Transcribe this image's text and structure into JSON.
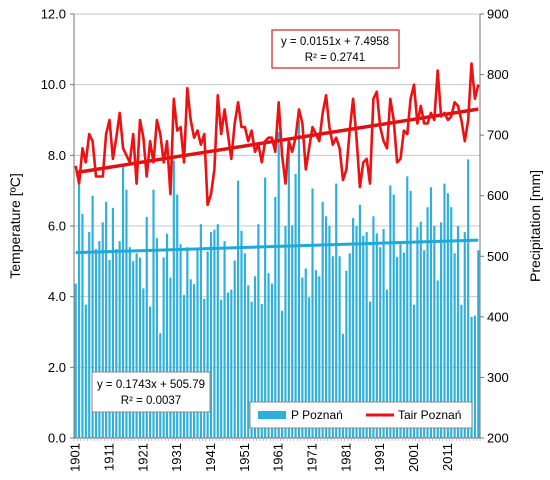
{
  "chart_data": {
    "type": "bar+line",
    "x_start": 1901,
    "x_end": 2020,
    "x_tick_labels": [
      "1901",
      "1911",
      "1921",
      "1931",
      "1941",
      "1951",
      "1961",
      "1971",
      "1981",
      "1991",
      "2001",
      "2011"
    ],
    "y_left": {
      "label": "Temperature [ºC]",
      "lim": [
        0.0,
        12.0
      ],
      "tick_labels": [
        "0.0",
        "2.0",
        "4.0",
        "6.0",
        "8.0",
        "10.0",
        "12.0"
      ]
    },
    "y_right": {
      "label": "Precipitation [mm]",
      "lim": [
        200,
        900
      ],
      "tick_labels": [
        "200",
        "300",
        "400",
        "500",
        "600",
        "700",
        "800",
        "900"
      ]
    },
    "series": [
      {
        "name": "P Poznań",
        "type": "bar",
        "axis": "right",
        "color": "#2fb0dc",
        "values": [
          455,
          618,
          570,
          420,
          540,
          600,
          512,
          525,
          556,
          590,
          494,
          580,
          512,
          525,
          650,
          610,
          515,
          492,
          505,
          498,
          447,
          565,
          417,
          610,
          530,
          373,
          498,
          537,
          465,
          658,
          602,
          520,
          436,
          515,
          462,
          454,
          512,
          553,
          430,
          508,
          540,
          544,
          553,
          428,
          525,
          440,
          445,
          493,
          625,
          542,
          505,
          452,
          425,
          467,
          553,
          421,
          630,
          472,
          455,
          598,
          705,
          410,
          550,
          688,
          551,
          636,
          724,
          465,
          480,
          432,
          612,
          477,
          467,
          590,
          566,
          550,
          500,
          620,
          500,
          372,
          476,
          505,
          563,
          550,
          585,
          534,
          540,
          425,
          566,
          538,
          515,
          545,
          445,
          617,
          602,
          499,
          520,
          506,
          632,
          608,
          420,
          548,
          557,
          510,
          581,
          614,
          550,
          460,
          556,
          620,
          604,
          581,
          505,
          550,
          420,
          540,
          660,
          400,
          402,
          510
        ],
        "trend": {
          "slope": 0.1743,
          "intercept": 505.79,
          "equation": "y = 0.1743x + 505.79",
          "r2": "R² = 0.0037"
        }
      },
      {
        "name": "Tair Poznań",
        "type": "line",
        "axis": "left",
        "color": "#ee1111",
        "values": [
          7.7,
          7.2,
          8.2,
          7.8,
          8.6,
          8.4,
          7.4,
          7.4,
          7.4,
          8.6,
          9.0,
          7.9,
          8.5,
          9.2,
          8.2,
          8.0,
          7.8,
          8.6,
          7.2,
          9.0,
          8.5,
          7.4,
          8.4,
          7.8,
          9.0,
          8.6,
          7.8,
          8.4,
          6.9,
          9.6,
          8.7,
          8.8,
          7.8,
          9.9,
          9.0,
          8.5,
          8.7,
          8.3,
          8.6,
          6.6,
          6.9,
          7.6,
          9.7,
          8.6,
          9.3,
          8.6,
          7.9,
          8.9,
          9.5,
          8.8,
          8.8,
          8.4,
          8.7,
          8.1,
          8.3,
          7.8,
          8.4,
          8.5,
          8.5,
          8.1,
          9.5,
          8.0,
          7.2,
          8.4,
          8.1,
          8.5,
          9.3,
          8.9,
          7.6,
          8.2,
          8.8,
          8.6,
          8.4,
          9.2,
          9.7,
          8.8,
          8.3,
          8.5,
          8.2,
          7.3,
          7.6,
          8.7,
          9.6,
          8.5,
          7.1,
          7.8,
          7.9,
          7.2,
          9.6,
          9.8,
          8.8,
          8.4,
          8.2,
          9.6,
          9.0,
          7.8,
          7.9,
          8.7,
          8.6,
          9.6,
          10.0,
          8.9,
          9.4,
          8.9,
          8.9,
          9.2,
          9.0,
          10.4,
          9.1,
          9.2,
          9.0,
          9.1,
          9.5,
          9.4,
          9.0,
          8.4,
          9.0,
          10.6,
          9.6,
          10.0
        ]
      }
    ],
    "trend_tair": {
      "slope": 0.0151,
      "intercept": 7.4958,
      "equation": "y = 0.0151x + 7.4958",
      "r2": "R² = 0.2741"
    },
    "legend": {
      "placement": "bottom-right"
    },
    "colors": {
      "bar": "#2fb0dc",
      "bar_trend": "#1fa9d8",
      "line": "#ee1111",
      "line_trend": "#dd1111",
      "gridline": "#c8c8c8"
    }
  }
}
